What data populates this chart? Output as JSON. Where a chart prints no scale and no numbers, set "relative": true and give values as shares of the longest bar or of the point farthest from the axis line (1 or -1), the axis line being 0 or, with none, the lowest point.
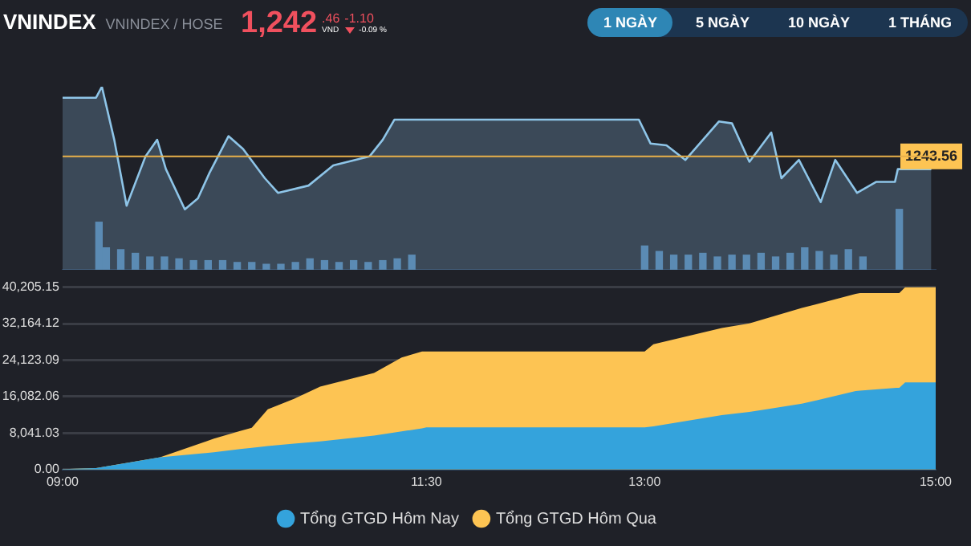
{
  "chart_data": [
    {
      "type": "area",
      "title": "VNINDEX",
      "subtitle": "VNINDEX / HOSE",
      "annotations": [
        "1,242",
        ".46",
        "VND",
        "-1.10",
        "-0.09 %",
        "1 NGÀY",
        "5 NGÀY",
        "10 NGÀY",
        "1 THÁNG",
        "1243.56"
      ],
      "relative": true,
      "xlim": [
        9,
        15
      ],
      "tick_labels": false,
      "grid": false,
      "legend": false,
      "ref_lines": [
        {
          "axis": "y",
          "value": 0.62,
          "color": "#e8b04a"
        }
      ],
      "series": [
        {
          "type": "area",
          "color": "#8ec5e8",
          "x": [
            9.0,
            9.23,
            9.27,
            9.355,
            9.44,
            9.57,
            9.65,
            9.71,
            9.84,
            9.93,
            10.01,
            10.14,
            10.24,
            10.39,
            10.48,
            10.69,
            10.86,
            11.11,
            11.2,
            11.28,
            11.45,
            12.96,
            13.04,
            13.15,
            13.28,
            13.51,
            13.6,
            13.72,
            13.87,
            13.94,
            14.06,
            14.21,
            14.31,
            14.46,
            14.59,
            14.72,
            14.74,
            14.97
          ],
          "values": [
            0.94,
            0.94,
            1.0,
            0.71,
            0.35,
            0.62,
            0.71,
            0.55,
            0.33,
            0.39,
            0.53,
            0.73,
            0.66,
            0.5,
            0.42,
            0.46,
            0.57,
            0.62,
            0.71,
            0.82,
            0.82,
            0.82,
            0.69,
            0.68,
            0.6,
            0.81,
            0.8,
            0.59,
            0.75,
            0.5,
            0.6,
            0.37,
            0.6,
            0.42,
            0.48,
            0.48,
            0.55,
            0.55
          ]
        },
        {
          "type": "bar",
          "color": "#4a78a3",
          "x": [
            9.25,
            9.3,
            9.4,
            9.5,
            9.6,
            9.7,
            9.8,
            9.9,
            10.0,
            10.1,
            10.2,
            10.3,
            10.4,
            10.5,
            10.6,
            10.7,
            10.8,
            10.9,
            11.0,
            11.1,
            11.2,
            11.3,
            11.4,
            13.0,
            13.1,
            13.2,
            13.3,
            13.4,
            13.5,
            13.6,
            13.7,
            13.8,
            13.9,
            14.0,
            14.1,
            14.2,
            14.3,
            14.4,
            14.5,
            14.75
          ],
          "values": [
            0.26,
            0.12,
            0.11,
            0.09,
            0.07,
            0.07,
            0.06,
            0.05,
            0.05,
            0.05,
            0.04,
            0.04,
            0.03,
            0.03,
            0.04,
            0.06,
            0.05,
            0.04,
            0.05,
            0.04,
            0.05,
            0.06,
            0.08,
            0.13,
            0.1,
            0.08,
            0.08,
            0.09,
            0.07,
            0.08,
            0.08,
            0.09,
            0.07,
            0.09,
            0.12,
            0.1,
            0.08,
            0.11,
            0.07,
            0.33
          ]
        }
      ]
    },
    {
      "type": "area",
      "x": [
        9,
        9.23,
        9.67,
        10.04,
        10.22,
        10.3,
        10.41,
        10.59,
        10.77,
        11.14,
        11.33,
        11.47,
        11.5,
        13.0,
        13.06,
        13.53,
        13.72,
        14.08,
        14.45,
        14.48,
        14.73,
        14.75,
        14.79,
        15.0
      ],
      "xlim": [
        9,
        15
      ],
      "xticks": [
        {
          "value": 9,
          "label": "09:00"
        },
        {
          "value": 11.5,
          "label": "11:30"
        },
        {
          "value": 13,
          "label": "13:00"
        },
        {
          "value": 15,
          "label": "15:00"
        }
      ],
      "ylim": [
        0,
        40205.15
      ],
      "yticks": [
        {
          "value": 0,
          "label": "0.00"
        },
        {
          "value": 8041.03,
          "label": "8,041.03"
        },
        {
          "value": 16082.06,
          "label": "16,082.06"
        },
        {
          "value": 24123.09,
          "label": "24,123.09"
        },
        {
          "value": 32164.12,
          "label": "32,164.12"
        },
        {
          "value": 40205.15,
          "label": "40,205.15"
        }
      ],
      "grid": "y",
      "legend": "bottom",
      "series": [
        {
          "name": "Tổng GTGD Hôm Nay",
          "color": "#34a3dc",
          "values": [
            100,
            300,
            2700,
            3800,
            4500,
            4800,
            5200,
            5700,
            6200,
            7500,
            8400,
            9100,
            9300,
            9300,
            9500,
            12000,
            12700,
            14500,
            17300,
            17400,
            18000,
            18000,
            19200,
            19200
          ]
        },
        {
          "name": "Tổng GTGD Hôm Qua",
          "color": "#fdc453",
          "values": [
            100,
            300,
            2700,
            6800,
            8500,
            9200,
            13300,
            15600,
            18300,
            21300,
            24700,
            26000,
            26000,
            26000,
            27600,
            31200,
            32200,
            35600,
            38700,
            38900,
            38900,
            38900,
            40200,
            40205.15
          ]
        }
      ]
    }
  ]
}
